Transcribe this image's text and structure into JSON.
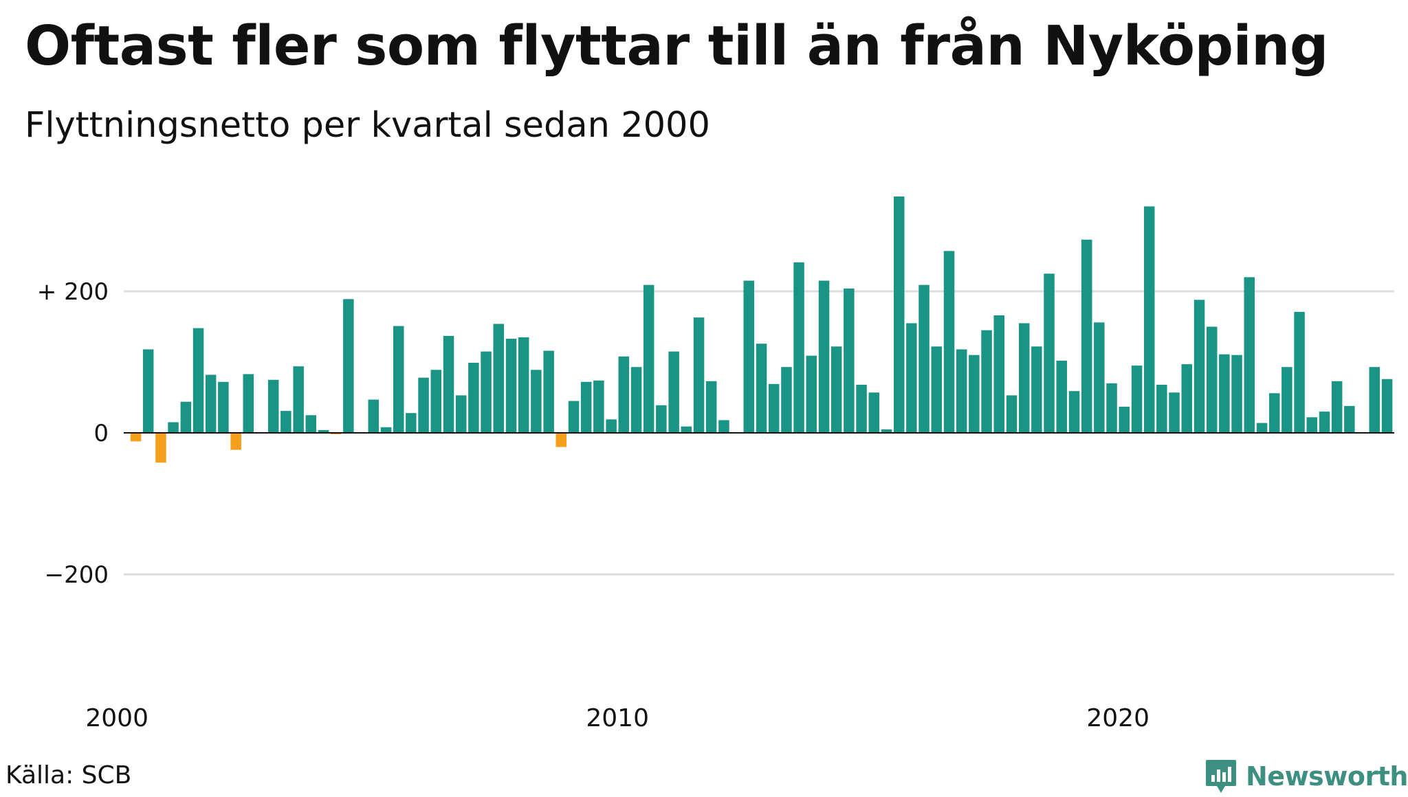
{
  "header": {
    "title": "Oftast fler som flyttar till än från Nyköping",
    "subtitle": "Flyttningsnetto per kvartal sedan 2000"
  },
  "footer": {
    "source": "Källa: SCB",
    "brand": "Newsworthy",
    "brand_icon": "newsworthy-logo-icon"
  },
  "colors": {
    "positive": "#1a9585",
    "negative": "#f59f1c",
    "grid": "#dddddd",
    "zero_line": "#111111",
    "brand": "#3d8f82"
  },
  "chart_data": {
    "type": "bar",
    "title": "Oftast fler som flyttar till än från Nyköping",
    "subtitle": "Flyttningsnetto per kvartal sedan 2000",
    "ylim": [
      -350,
      350
    ],
    "y_ticks": [
      200,
      0,
      -200
    ],
    "y_tick_labels": [
      "+ 200",
      "0",
      "−200"
    ],
    "x_tick_labels": [
      "2000",
      "2010",
      "2020"
    ],
    "x_ticks": [
      2000,
      2010,
      2020
    ],
    "grid": true,
    "start_year": 2000,
    "values": [
      -12,
      118,
      -42,
      15,
      44,
      148,
      82,
      72,
      -24,
      83,
      0,
      75,
      31,
      94,
      25,
      4,
      -2,
      189,
      0,
      47,
      8,
      151,
      28,
      78,
      89,
      137,
      53,
      99,
      115,
      154,
      133,
      135,
      89,
      116,
      -20,
      45,
      72,
      74,
      19,
      108,
      93,
      209,
      39,
      115,
      9,
      163,
      73,
      18,
      0,
      215,
      126,
      69,
      93,
      241,
      109,
      215,
      122,
      204,
      68,
      57,
      5,
      334,
      155,
      209,
      122,
      257,
      118,
      110,
      145,
      166,
      53,
      155,
      122,
      225,
      102,
      59,
      273,
      156,
      70,
      37,
      95,
      320,
      68,
      57,
      97,
      188,
      150,
      111,
      110,
      220,
      14,
      56,
      93,
      171,
      22,
      30,
      73,
      38,
      -1,
      93,
      76
    ]
  }
}
